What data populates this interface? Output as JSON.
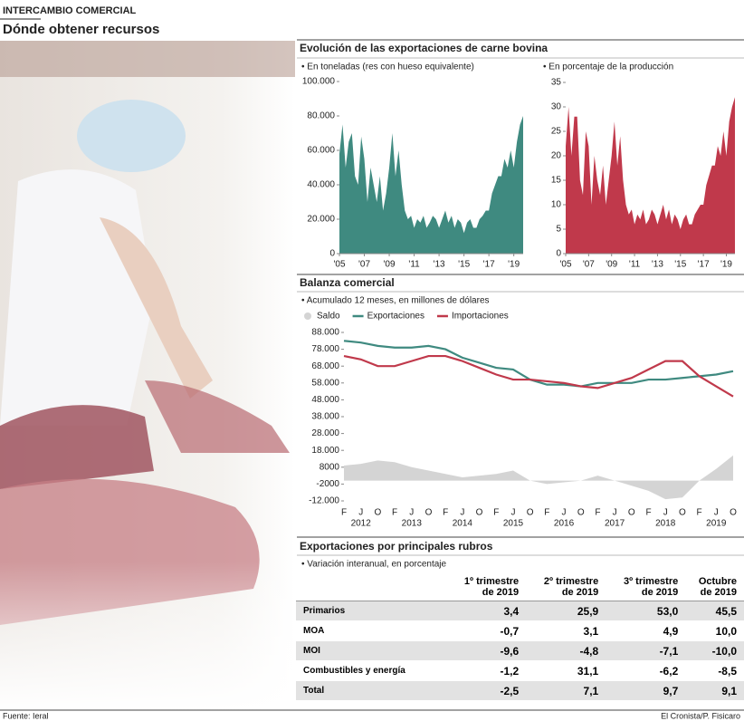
{
  "header": {
    "kicker": "INTERCAMBIO COMERCIAL",
    "title": "Dónde obtener recursos"
  },
  "chart_data": [
    {
      "type": "area",
      "title": "Evolución de las exportaciones de carne bovina",
      "subtitle": "• En toneladas (res con hueso equivalente)",
      "color": "#3f8a80",
      "x": [
        2005,
        2005.25,
        2005.5,
        2005.75,
        2006,
        2006.25,
        2006.5,
        2006.75,
        2007,
        2007.25,
        2007.5,
        2007.75,
        2008,
        2008.25,
        2008.5,
        2008.75,
        2009,
        2009.25,
        2009.5,
        2009.75,
        2010,
        2010.25,
        2010.5,
        2010.75,
        2011,
        2011.25,
        2011.5,
        2011.75,
        2012,
        2012.25,
        2012.5,
        2012.75,
        2013,
        2013.25,
        2013.5,
        2013.75,
        2014,
        2014.25,
        2014.5,
        2014.75,
        2015,
        2015.25,
        2015.5,
        2015.75,
        2016,
        2016.25,
        2016.5,
        2016.75,
        2017,
        2017.25,
        2017.5,
        2017.75,
        2018,
        2018.25,
        2018.5,
        2018.75,
        2019,
        2019.25,
        2019.5,
        2019.75
      ],
      "values": [
        58000,
        75000,
        50000,
        65000,
        70000,
        45000,
        40000,
        68000,
        55000,
        30000,
        50000,
        40000,
        30000,
        45000,
        25000,
        35000,
        50000,
        70000,
        45000,
        60000,
        40000,
        25000,
        20000,
        22000,
        15000,
        20000,
        18000,
        22000,
        15000,
        18000,
        22000,
        20000,
        15000,
        20000,
        25000,
        18000,
        22000,
        15000,
        20000,
        18000,
        12000,
        18000,
        20000,
        15000,
        15000,
        20000,
        22000,
        25000,
        25000,
        35000,
        40000,
        45000,
        45000,
        55000,
        50000,
        60000,
        50000,
        65000,
        75000,
        80000
      ],
      "xlim": [
        2005,
        2019.75
      ],
      "xticks": [
        {
          "value": 2005,
          "label": "'05"
        },
        {
          "value": 2007,
          "label": "'07"
        },
        {
          "value": 2009,
          "label": "'09"
        },
        {
          "value": 2011,
          "label": "'11"
        },
        {
          "value": 2013,
          "label": "'13"
        },
        {
          "value": 2015,
          "label": "'15"
        },
        {
          "value": 2017,
          "label": "'17"
        },
        {
          "value": 2019,
          "label": "'19"
        }
      ],
      "ylim": [
        0,
        100000
      ],
      "yticks": [
        0,
        {
          "value": 20000,
          "label": "20.000"
        },
        {
          "value": 40000,
          "label": "40.000"
        },
        {
          "value": 60000,
          "label": "60.000"
        },
        {
          "value": 80000,
          "label": "80.000"
        },
        {
          "value": 100000,
          "label": "100.000"
        }
      ]
    },
    {
      "type": "area",
      "subtitle": "• En porcentaje de la producción",
      "color": "#c0394b",
      "x": [
        2005,
        2005.25,
        2005.5,
        2005.75,
        2006,
        2006.25,
        2006.5,
        2006.75,
        2007,
        2007.25,
        2007.5,
        2007.75,
        2008,
        2008.25,
        2008.5,
        2008.75,
        2009,
        2009.25,
        2009.5,
        2009.75,
        2010,
        2010.25,
        2010.5,
        2010.75,
        2011,
        2011.25,
        2011.5,
        2011.75,
        2012,
        2012.25,
        2012.5,
        2012.75,
        2013,
        2013.25,
        2013.5,
        2013.75,
        2014,
        2014.25,
        2014.5,
        2014.75,
        2015,
        2015.25,
        2015.5,
        2015.75,
        2016,
        2016.25,
        2016.5,
        2016.75,
        2017,
        2017.25,
        2017.5,
        2017.75,
        2018,
        2018.25,
        2018.5,
        2018.75,
        2019,
        2019.25,
        2019.5,
        2019.75
      ],
      "values": [
        22,
        30,
        20,
        28,
        28,
        15,
        12,
        25,
        22,
        10,
        20,
        15,
        12,
        18,
        10,
        15,
        20,
        27,
        18,
        24,
        15,
        10,
        8,
        9,
        6,
        8,
        7,
        9,
        6,
        7,
        9,
        8,
        6,
        8,
        10,
        7,
        9,
        6,
        8,
        7,
        5,
        7,
        8,
        6,
        6,
        8,
        9,
        10,
        10,
        14,
        16,
        18,
        18,
        22,
        20,
        25,
        20,
        27,
        30,
        32
      ],
      "xlim": [
        2005,
        2019.75
      ],
      "xticks": [
        {
          "value": 2005,
          "label": "'05"
        },
        {
          "value": 2007,
          "label": "'07"
        },
        {
          "value": 2009,
          "label": "'09"
        },
        {
          "value": 2011,
          "label": "'11"
        },
        {
          "value": 2013,
          "label": "'13"
        },
        {
          "value": 2015,
          "label": "'15"
        },
        {
          "value": 2017,
          "label": "'17"
        },
        {
          "value": 2019,
          "label": "'19"
        }
      ],
      "ylim": [
        0,
        35
      ],
      "yticks": [
        0,
        5,
        10,
        15,
        20,
        25,
        30,
        35
      ]
    },
    {
      "type": "line",
      "title": "Balanza comercial",
      "subtitle": "• Acumulado 12 meses, en millones de dólares",
      "legend": "top-left",
      "categories": [
        "F",
        "J",
        "O",
        "F",
        "J",
        "O",
        "F",
        "J",
        "O",
        "F",
        "J",
        "O",
        "F",
        "J",
        "O",
        "F",
        "J",
        "O",
        "F",
        "J",
        "O",
        "F",
        "J",
        "O"
      ],
      "year_labels": [
        "2012",
        "2013",
        "2014",
        "2015",
        "2016",
        "2017",
        "2018",
        "2019"
      ],
      "series": [
        {
          "name": "Saldo",
          "color": "#d4d4d4",
          "area": true,
          "values": [
            9000,
            10000,
            12000,
            11000,
            8000,
            6000,
            4000,
            2000,
            3000,
            4000,
            6000,
            0,
            -2000,
            -1000,
            0,
            3000,
            0,
            -3000,
            -6000,
            -11000,
            -10000,
            0,
            7000,
            15000
          ]
        },
        {
          "name": "Exportaciones",
          "color": "#3f8a80",
          "values": [
            83000,
            82000,
            80000,
            79000,
            79000,
            80000,
            78000,
            73000,
            70000,
            67000,
            66000,
            60000,
            57000,
            57000,
            56000,
            58000,
            58000,
            58000,
            60000,
            60000,
            61000,
            62000,
            63000,
            65000
          ]
        },
        {
          "name": "Importaciones",
          "color": "#c0394b",
          "values": [
            74000,
            72000,
            68000,
            68000,
            71000,
            74000,
            74000,
            71000,
            67000,
            63000,
            60000,
            60000,
            59000,
            58000,
            56000,
            55000,
            58000,
            61000,
            66000,
            71000,
            71000,
            62000,
            56000,
            50000
          ]
        }
      ],
      "ylim": [
        -12000,
        88000
      ],
      "yticks": [
        {
          "value": -12000,
          "label": "-12.000"
        },
        -2000,
        8000,
        {
          "value": 18000,
          "label": "18.000"
        },
        {
          "value": 28000,
          "label": "28.000"
        },
        {
          "value": 38000,
          "label": "38.000"
        },
        {
          "value": 48000,
          "label": "48.000"
        },
        {
          "value": 58000,
          "label": "58.000"
        },
        {
          "value": 68000,
          "label": "68.000"
        },
        {
          "value": 78000,
          "label": "78.000"
        },
        {
          "value": 88000,
          "label": "88.000"
        }
      ]
    }
  ],
  "table": {
    "title": "Exportaciones por principales rubros",
    "subtitle": "• Variación interanual, en porcentaje",
    "columns": [
      "1º trimestre\nde 2019",
      "2º trimestre\nde 2019",
      "3º trimestre\nde 2019",
      "Octubre\nde 2019"
    ],
    "rows": [
      {
        "label": "Primarios",
        "values": [
          "3,4",
          "25,9",
          "53,0",
          "45,5"
        ]
      },
      {
        "label": "MOA",
        "values": [
          "-0,7",
          "3,1",
          "4,9",
          "10,0"
        ]
      },
      {
        "label": "MOI",
        "values": [
          "-9,6",
          "-4,8",
          "-7,1",
          "-10,0"
        ]
      },
      {
        "label": "Combustibles y energía",
        "values": [
          "-1,2",
          "31,1",
          "-6,2",
          "-8,5"
        ]
      },
      {
        "label": "Total",
        "values": [
          "-2,5",
          "7,1",
          "9,7",
          "9,1"
        ]
      }
    ]
  },
  "footer": {
    "source": "Fuente: Ieral",
    "credit": "El Cronista/P. Fisicaro"
  }
}
